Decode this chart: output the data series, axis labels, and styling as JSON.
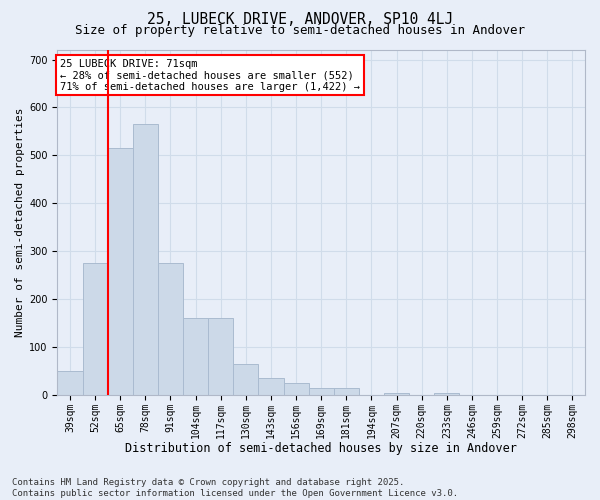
{
  "title1": "25, LUBECK DRIVE, ANDOVER, SP10 4LJ",
  "title2": "Size of property relative to semi-detached houses in Andover",
  "xlabel": "Distribution of semi-detached houses by size in Andover",
  "ylabel": "Number of semi-detached properties",
  "categories": [
    "39sqm",
    "52sqm",
    "65sqm",
    "78sqm",
    "91sqm",
    "104sqm",
    "117sqm",
    "130sqm",
    "143sqm",
    "156sqm",
    "169sqm",
    "181sqm",
    "194sqm",
    "207sqm",
    "220sqm",
    "233sqm",
    "246sqm",
    "259sqm",
    "272sqm",
    "285sqm",
    "298sqm"
  ],
  "values": [
    50,
    275,
    515,
    565,
    275,
    160,
    160,
    65,
    35,
    25,
    15,
    15,
    0,
    5,
    0,
    5,
    0,
    0,
    0,
    0,
    0
  ],
  "bar_color": "#ccd9e8",
  "bar_edge_color": "#aabbd0",
  "vline_color": "red",
  "annotation_text": "25 LUBECK DRIVE: 71sqm\n← 28% of semi-detached houses are smaller (552)\n71% of semi-detached houses are larger (1,422) →",
  "annotation_box_color": "white",
  "annotation_box_edge_color": "red",
  "ylim": [
    0,
    720
  ],
  "yticks": [
    0,
    100,
    200,
    300,
    400,
    500,
    600,
    700
  ],
  "grid_color": "#d0dcea",
  "background_color": "#e8eef8",
  "footer_text": "Contains HM Land Registry data © Crown copyright and database right 2025.\nContains public sector information licensed under the Open Government Licence v3.0.",
  "title1_fontsize": 10.5,
  "title2_fontsize": 9,
  "xlabel_fontsize": 8.5,
  "ylabel_fontsize": 8,
  "tick_fontsize": 7,
  "annotation_fontsize": 7.5,
  "footer_fontsize": 6.5
}
